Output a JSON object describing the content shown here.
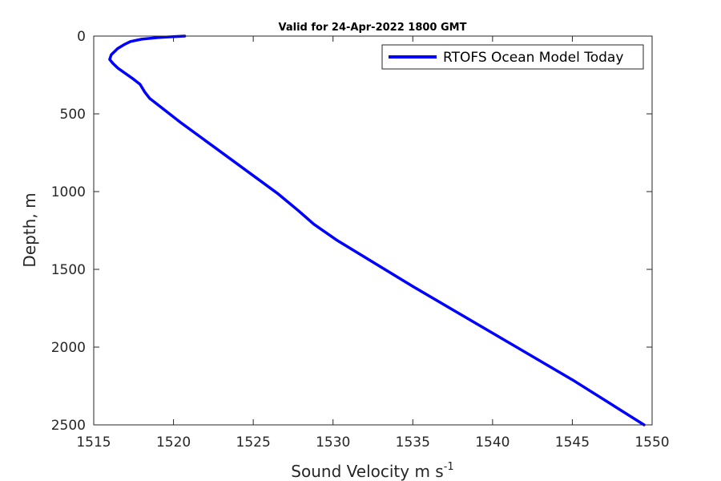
{
  "chart_data": {
    "type": "line",
    "title": "Valid for 24-Apr-2022 1800 GMT",
    "xlabel_text": "Sound Velocity m s",
    "xlabel_sup": "-1",
    "ylabel": "Depth, m",
    "xlim": [
      1515,
      1550
    ],
    "ylim": [
      0,
      2500
    ],
    "y_reversed": true,
    "grid": false,
    "legend_position": "top-right",
    "xticks": [
      1515,
      1520,
      1525,
      1530,
      1535,
      1540,
      1545,
      1550
    ],
    "yticks": [
      0,
      500,
      1000,
      1500,
      2000,
      2500
    ],
    "xtick_labels": [
      "1515",
      "1520",
      "1525",
      "1530",
      "1535",
      "1540",
      "1545",
      "1550"
    ],
    "ytick_labels": [
      "0",
      "500",
      "1000",
      "1500",
      "2000",
      "2500"
    ],
    "series": [
      {
        "name": "RTOFS Ocean Model Today",
        "color": "#0000ff",
        "x": [
          1520.7,
          1520.1,
          1519.0,
          1518.0,
          1517.3,
          1516.9,
          1516.5,
          1516.1,
          1516.0,
          1516.2,
          1516.5,
          1517.4,
          1517.9,
          1518.2,
          1518.5,
          1520.5,
          1522.5,
          1524.5,
          1526.5,
          1527.8,
          1528.8,
          1530.2,
          1535.0,
          1540.0,
          1545.0,
          1549.5
        ],
        "y": [
          0,
          3,
          10,
          20,
          35,
          55,
          80,
          120,
          150,
          175,
          205,
          270,
          310,
          360,
          400,
          560,
          710,
          860,
          1010,
          1120,
          1210,
          1310,
          1610,
          1910,
          2210,
          2500
        ]
      }
    ]
  }
}
